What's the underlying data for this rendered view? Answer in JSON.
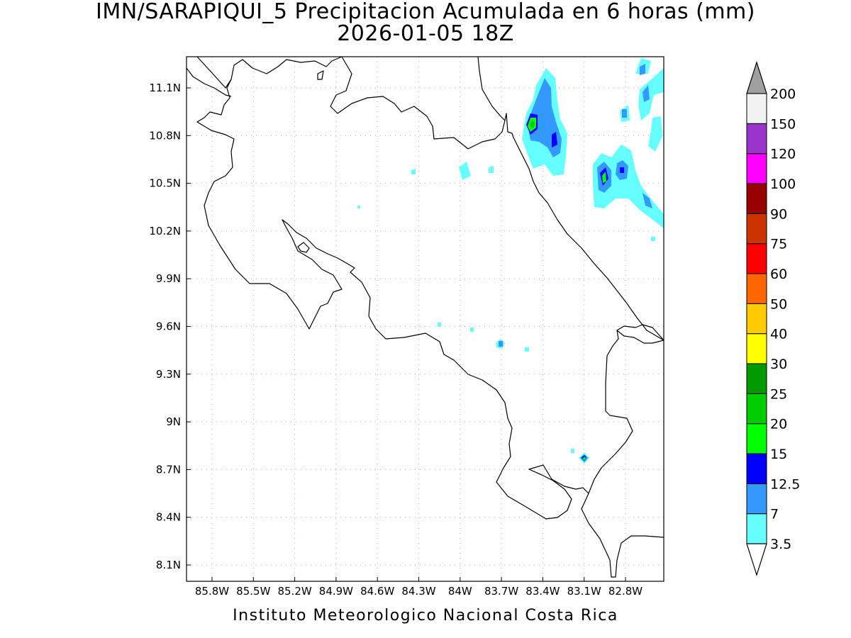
{
  "header": {
    "title": "IMN/SARAPIQUI_5 Precipitacion Acumulada en 6 horas (mm)",
    "subtitle": "2026-01-05 18Z"
  },
  "footer": {
    "credit": "Instituto Meteorologico Nacional Costa Rica"
  },
  "map": {
    "lat_labels": [
      "11.1N",
      "10.8N",
      "10.5N",
      "10.2N",
      "9.9N",
      "9.6N",
      "9.3N",
      "9N",
      "8.7N",
      "8.4N",
      "8.1N"
    ],
    "lon_labels": [
      "85.8W",
      "85.5W",
      "85.2W",
      "84.9W",
      "84.6W",
      "84.3W",
      "84W",
      "83.7W",
      "83.4W",
      "83.1W",
      "82.8W"
    ],
    "grid": "dotted",
    "colors": {
      "coastline": "#000000",
      "gridline": "#aaaaaa",
      "frame": "#000000"
    }
  },
  "colorbar": {
    "labels": [
      "3.5",
      "7",
      "12.5",
      "15",
      "20",
      "25",
      "30",
      "40",
      "50",
      "60",
      "75",
      "90",
      "100",
      "120",
      "150",
      "200"
    ],
    "colors": [
      "#66ffff",
      "#3399ff",
      "#0000ff",
      "#00ff00",
      "#00cc00",
      "#009900",
      "#ffff00",
      "#ffcc00",
      "#ff6600",
      "#ff0000",
      "#cc3300",
      "#990000",
      "#ff00ff",
      "#9933cc",
      "#f2f2f2"
    ],
    "min_arrow_color": "#ffffff",
    "max_arrow_color": "#a0a0a0"
  }
}
